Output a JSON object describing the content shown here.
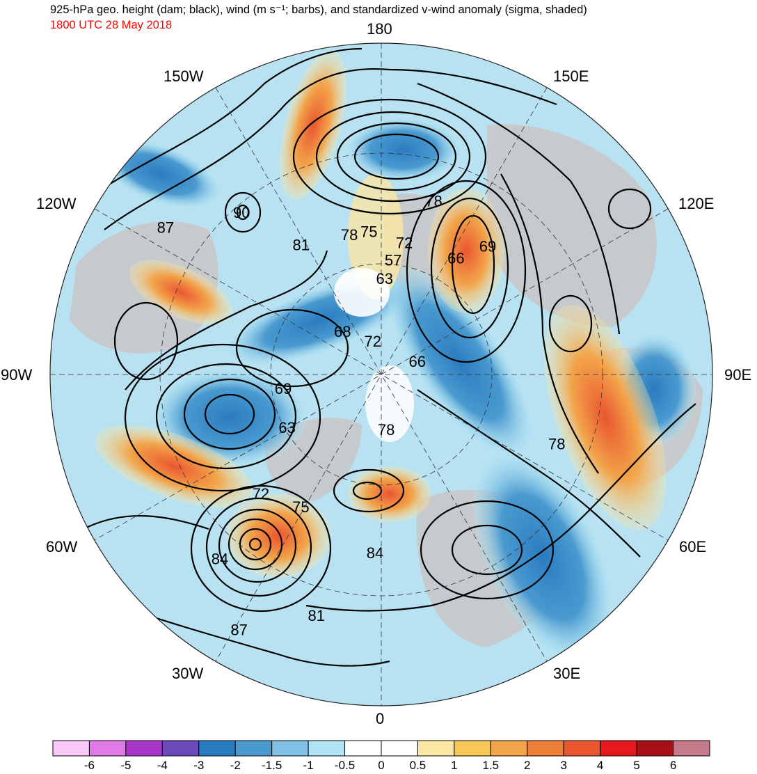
{
  "header": {
    "title": "925-hPa geo. height (dam; black), wind (m s⁻¹; barbs), and standardized v-wind anomaly (sigma, shaded)",
    "subtitle": "1800 UTC 28 May 2018",
    "subtitle_color": "#ff0000"
  },
  "longitude_labels": {
    "lon_180": "180",
    "lon_150w": "150W",
    "lon_150e": "150E",
    "lon_120w": "120W",
    "lon_120e": "120E",
    "lon_90w": "90W",
    "lon_90e": "90E",
    "lon_60w": "60W",
    "lon_60e": "60E",
    "lon_30w": "30W",
    "lon_30e": "30E",
    "lon_0": "0"
  },
  "contour_labels": [
    {
      "text": "78",
      "lon": 163,
      "lat": 52
    },
    {
      "text": "72",
      "lon": 170,
      "lat": 62
    },
    {
      "text": "75",
      "lon": 185,
      "lat": 60
    },
    {
      "text": "66",
      "lon": 147,
      "lat": 61
    },
    {
      "text": "69",
      "lon": 140,
      "lat": 55
    },
    {
      "text": "57",
      "lon": 174,
      "lat": 66
    },
    {
      "text": "78",
      "lon": 193,
      "lat": 60
    },
    {
      "text": "63",
      "lon": 178,
      "lat": 70
    },
    {
      "text": "90",
      "lon": 221,
      "lat": 45
    },
    {
      "text": "87",
      "lon": 236,
      "lat": 35
    },
    {
      "text": "81",
      "lon": 212,
      "lat": 58
    },
    {
      "text": "72",
      "lon": 195,
      "lat": 83
    },
    {
      "text": "66",
      "lon": 108,
      "lat": 82
    },
    {
      "text": "68",
      "lon": 223,
      "lat": 78
    },
    {
      "text": "69",
      "lon": 279,
      "lat": 69
    },
    {
      "text": "63",
      "lon": 300,
      "lat": 67
    },
    {
      "text": "78",
      "lon": 5,
      "lat": 78
    },
    {
      "text": "72",
      "lon": 315,
      "lat": 54
    },
    {
      "text": "75",
      "lon": 329,
      "lat": 57
    },
    {
      "text": "84",
      "lon": 319,
      "lat": 38
    },
    {
      "text": "84",
      "lon": 358,
      "lat": 52
    },
    {
      "text": "81",
      "lon": 345,
      "lat": 37
    },
    {
      "text": "87",
      "lon": 331,
      "lat": 28
    },
    {
      "text": "78",
      "lon": 68,
      "lat": 50
    }
  ],
  "colorbar": {
    "colors": [
      "#f9c8f9",
      "#e17ae9",
      "#a836c9",
      "#6a4bb9",
      "#2a7cc0",
      "#4a9ad0",
      "#80c0e6",
      "#b0e4f4",
      "#ffffff",
      "#ffffff",
      "#fbe6a4",
      "#f6c858",
      "#f2a44a",
      "#ee7f38",
      "#ea5630",
      "#e8191c",
      "#a50f15",
      "#c47a8a"
    ],
    "ticks": [
      "-6",
      "-5",
      "-4",
      "-3",
      "-2",
      "-1.5",
      "-1",
      "-0.5",
      "0",
      "0.5",
      "1",
      "1.5",
      "2",
      "3",
      "4",
      "5",
      "6"
    ]
  }
}
